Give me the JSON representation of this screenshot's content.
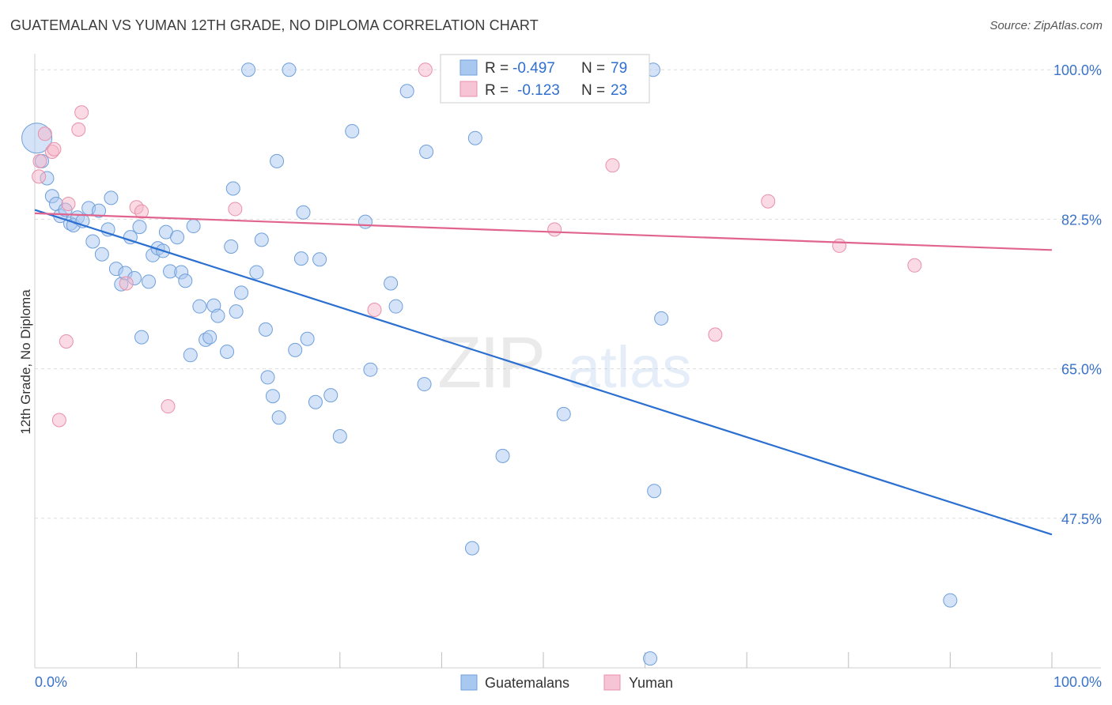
{
  "title": "GUATEMALAN VS YUMAN 12TH GRADE, NO DIPLOMA CORRELATION CHART",
  "source": "Source: ZipAtlas.com",
  "watermark": {
    "zip": "ZIP",
    "atlas": "atlas"
  },
  "colors": {
    "blue_fill": "#a9c8f0",
    "blue_stroke": "#6f9fdb",
    "blue_line": "#2b6fd1",
    "pink_fill": "#f6b6c9",
    "pink_stroke": "#e890aa",
    "pink_line": "#e0648e",
    "axis_text": "#3a73c8",
    "grid": "#dddddd"
  },
  "legend": {
    "rows": [
      {
        "r_label": "R =",
        "r_value": "-0.497",
        "n_label": "N =",
        "n_value": "79",
        "color": "blue"
      },
      {
        "r_label": "R =",
        "r_value": "-0.123",
        "n_label": "N =",
        "n_value": "23",
        "color": "pink"
      }
    ]
  },
  "bottom_legend": [
    "Guatemalans",
    "Yuman"
  ],
  "chart_data": {
    "type": "scatter",
    "title": "GUATEMALAN VS YUMAN 12TH GRADE, NO DIPLOMA CORRELATION CHART",
    "xlabel": "",
    "ylabel": "12th Grade, No Diploma",
    "xlim": [
      0,
      100
    ],
    "ylim": [
      30,
      101.5
    ],
    "x_tick_labels": [
      "0.0%",
      "100.0%"
    ],
    "y_ticks": [
      100.0,
      82.5,
      65.0,
      47.5
    ],
    "y_tick_labels": [
      "100.0%",
      "82.5%",
      "65.0%",
      "47.5%"
    ],
    "grid": true,
    "legend_position": "top-center",
    "series": [
      {
        "name": "Guatemalans",
        "color": "blue",
        "trend": {
          "x": [
            0,
            100
          ],
          "y": [
            83.6,
            45.6
          ]
        },
        "points": [
          {
            "x": 0.2,
            "y": 92.0,
            "big": true
          },
          {
            "x": 0.7,
            "y": 89.3
          },
          {
            "x": 1.2,
            "y": 87.3
          },
          {
            "x": 1.7,
            "y": 85.2
          },
          {
            "x": 2.1,
            "y": 84.3
          },
          {
            "x": 2.5,
            "y": 82.9
          },
          {
            "x": 3.0,
            "y": 83.6
          },
          {
            "x": 3.5,
            "y": 82.0
          },
          {
            "x": 3.8,
            "y": 81.8
          },
          {
            "x": 4.2,
            "y": 82.7
          },
          {
            "x": 4.7,
            "y": 82.3
          },
          {
            "x": 5.3,
            "y": 83.8
          },
          {
            "x": 6.3,
            "y": 83.5
          },
          {
            "x": 7.5,
            "y": 85.0
          },
          {
            "x": 5.7,
            "y": 79.9
          },
          {
            "x": 6.6,
            "y": 78.4
          },
          {
            "x": 7.2,
            "y": 81.3
          },
          {
            "x": 8.0,
            "y": 76.7
          },
          {
            "x": 8.5,
            "y": 74.9
          },
          {
            "x": 8.9,
            "y": 76.2
          },
          {
            "x": 9.4,
            "y": 80.4
          },
          {
            "x": 9.8,
            "y": 75.6
          },
          {
            "x": 10.3,
            "y": 81.6
          },
          {
            "x": 11.2,
            "y": 75.2
          },
          {
            "x": 11.6,
            "y": 78.3
          },
          {
            "x": 12.1,
            "y": 79.1
          },
          {
            "x": 12.6,
            "y": 78.8
          },
          {
            "x": 12.9,
            "y": 81.0
          },
          {
            "x": 13.3,
            "y": 76.4
          },
          {
            "x": 14.0,
            "y": 80.4
          },
          {
            "x": 14.4,
            "y": 76.3
          },
          {
            "x": 14.8,
            "y": 75.3
          },
          {
            "x": 15.6,
            "y": 81.7
          },
          {
            "x": 16.2,
            "y": 72.3
          },
          {
            "x": 16.8,
            "y": 68.4
          },
          {
            "x": 17.2,
            "y": 68.7
          },
          {
            "x": 17.6,
            "y": 72.4
          },
          {
            "x": 18.0,
            "y": 71.2
          },
          {
            "x": 10.5,
            "y": 68.7
          },
          {
            "x": 15.3,
            "y": 66.6
          },
          {
            "x": 18.9,
            "y": 67.0
          },
          {
            "x": 19.3,
            "y": 79.3
          },
          {
            "x": 19.5,
            "y": 86.1
          },
          {
            "x": 19.8,
            "y": 71.7
          },
          {
            "x": 20.3,
            "y": 73.9
          },
          {
            "x": 21.0,
            "y": 100.0
          },
          {
            "x": 21.8,
            "y": 76.3
          },
          {
            "x": 22.3,
            "y": 80.1
          },
          {
            "x": 22.7,
            "y": 69.6
          },
          {
            "x": 22.9,
            "y": 64.0
          },
          {
            "x": 23.4,
            "y": 61.8
          },
          {
            "x": 23.8,
            "y": 89.3
          },
          {
            "x": 24.0,
            "y": 59.3
          },
          {
            "x": 25.0,
            "y": 100.0
          },
          {
            "x": 25.6,
            "y": 67.2
          },
          {
            "x": 26.2,
            "y": 77.9
          },
          {
            "x": 26.4,
            "y": 83.3
          },
          {
            "x": 26.8,
            "y": 68.5
          },
          {
            "x": 27.6,
            "y": 61.1
          },
          {
            "x": 28.0,
            "y": 77.8
          },
          {
            "x": 29.1,
            "y": 61.9
          },
          {
            "x": 30.0,
            "y": 57.1
          },
          {
            "x": 31.2,
            "y": 92.8
          },
          {
            "x": 32.5,
            "y": 82.2
          },
          {
            "x": 33.0,
            "y": 64.9
          },
          {
            "x": 35.0,
            "y": 75.0
          },
          {
            "x": 35.5,
            "y": 72.3
          },
          {
            "x": 36.6,
            "y": 97.5
          },
          {
            "x": 38.3,
            "y": 63.2
          },
          {
            "x": 38.5,
            "y": 90.4
          },
          {
            "x": 43.3,
            "y": 92.0
          },
          {
            "x": 46.0,
            "y": 54.8
          },
          {
            "x": 43.0,
            "y": 44.0
          },
          {
            "x": 52.0,
            "y": 59.7
          },
          {
            "x": 60.8,
            "y": 100.0
          },
          {
            "x": 60.9,
            "y": 50.7
          },
          {
            "x": 61.6,
            "y": 70.9
          },
          {
            "x": 60.5,
            "y": 31.1
          },
          {
            "x": 90.0,
            "y": 37.9
          }
        ]
      },
      {
        "name": "Yuman",
        "color": "pink",
        "trend": {
          "x": [
            0,
            100
          ],
          "y": [
            83.2,
            78.9
          ]
        },
        "points": [
          {
            "x": 0.5,
            "y": 89.3
          },
          {
            "x": 1.0,
            "y": 92.5
          },
          {
            "x": 1.7,
            "y": 90.4
          },
          {
            "x": 1.9,
            "y": 90.7
          },
          {
            "x": 0.4,
            "y": 87.5
          },
          {
            "x": 3.1,
            "y": 68.2
          },
          {
            "x": 3.3,
            "y": 84.3
          },
          {
            "x": 2.4,
            "y": 59.0
          },
          {
            "x": 4.3,
            "y": 93.0
          },
          {
            "x": 4.6,
            "y": 95.0
          },
          {
            "x": 9.0,
            "y": 75.0
          },
          {
            "x": 10.0,
            "y": 83.9
          },
          {
            "x": 10.5,
            "y": 83.4
          },
          {
            "x": 13.1,
            "y": 60.6
          },
          {
            "x": 19.7,
            "y": 83.7
          },
          {
            "x": 33.4,
            "y": 71.9
          },
          {
            "x": 38.4,
            "y": 100.0
          },
          {
            "x": 51.1,
            "y": 81.3
          },
          {
            "x": 56.8,
            "y": 88.8
          },
          {
            "x": 66.9,
            "y": 69.0
          },
          {
            "x": 72.1,
            "y": 84.6
          },
          {
            "x": 79.1,
            "y": 79.4
          },
          {
            "x": 86.5,
            "y": 77.1
          }
        ]
      }
    ]
  }
}
